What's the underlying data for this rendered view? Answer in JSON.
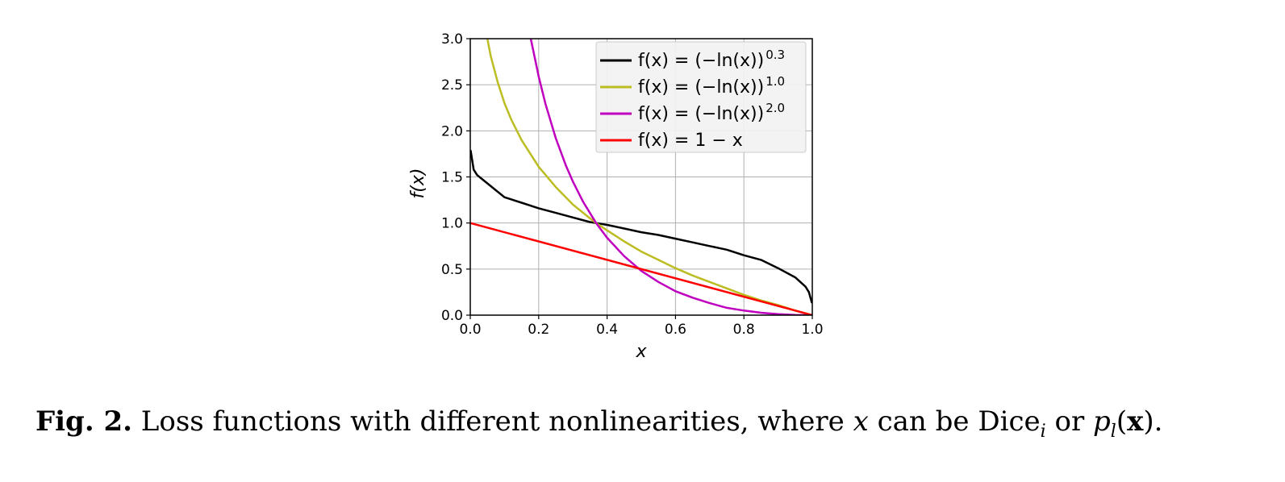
{
  "chart_data": {
    "type": "line",
    "xlabel": "x",
    "ylabel": "f(x)",
    "xlim": [
      0.0,
      1.0
    ],
    "ylim": [
      0.0,
      3.0
    ],
    "xticks": [
      "0.0",
      "0.2",
      "0.4",
      "0.6",
      "0.8",
      "1.0"
    ],
    "yticks": [
      "0.0",
      "0.5",
      "1.0",
      "1.5",
      "2.0",
      "2.5",
      "3.0"
    ],
    "grid": true,
    "legend_position": "top-right",
    "series": [
      {
        "name": "f(x) = (−ln(x))^0.3",
        "legend": {
          "prefix": "f(x) = (−ln(x))",
          "sup": "0.3"
        },
        "color": "#000000",
        "x": [
          0.001,
          0.01,
          0.02,
          0.05,
          0.1,
          0.15,
          0.2,
          0.25,
          0.3,
          0.35,
          0.3679,
          0.4,
          0.45,
          0.5,
          0.55,
          0.6,
          0.65,
          0.7,
          0.75,
          0.8,
          0.85,
          0.9,
          0.95,
          0.98,
          0.99,
          0.999
        ],
        "y": [
          1.79,
          1.58,
          1.52,
          1.43,
          1.28,
          1.22,
          1.16,
          1.11,
          1.06,
          1.01,
          1.0,
          0.98,
          0.94,
          0.9,
          0.87,
          0.83,
          0.79,
          0.75,
          0.71,
          0.65,
          0.6,
          0.51,
          0.41,
          0.31,
          0.25,
          0.13
        ]
      },
      {
        "name": "f(x) = (−ln(x))^1.0",
        "legend": {
          "prefix": "f(x) = (−ln(x))",
          "sup": "1.0"
        },
        "color": "#bcbd22",
        "x": [
          0.05,
          0.06,
          0.08,
          0.1,
          0.12,
          0.15,
          0.2,
          0.25,
          0.3,
          0.35,
          0.3679,
          0.4,
          0.45,
          0.5,
          0.55,
          0.6,
          0.65,
          0.7,
          0.75,
          0.8,
          0.85,
          0.9,
          0.95,
          1.0
        ],
        "y": [
          3.0,
          2.81,
          2.53,
          2.3,
          2.12,
          1.9,
          1.61,
          1.39,
          1.2,
          1.05,
          1.0,
          0.92,
          0.8,
          0.69,
          0.6,
          0.51,
          0.43,
          0.36,
          0.29,
          0.22,
          0.16,
          0.11,
          0.05,
          0.0
        ]
      },
      {
        "name": "f(x) = (−ln(x))^2.0",
        "legend": {
          "prefix": "f(x) = (−ln(x))",
          "sup": "2.0"
        },
        "color": "#bf00bf",
        "x": [
          0.177,
          0.2,
          0.22,
          0.25,
          0.28,
          0.3,
          0.33,
          0.3679,
          0.4,
          0.45,
          0.5,
          0.55,
          0.6,
          0.65,
          0.7,
          0.75,
          0.8,
          0.85,
          0.9,
          0.95,
          1.0
        ],
        "y": [
          3.0,
          2.59,
          2.29,
          1.92,
          1.62,
          1.45,
          1.23,
          1.0,
          0.84,
          0.64,
          0.48,
          0.36,
          0.26,
          0.19,
          0.13,
          0.08,
          0.05,
          0.026,
          0.011,
          0.003,
          0.0
        ]
      },
      {
        "name": "f(x) = 1 − x",
        "legend": {
          "prefix": "f(x) = 1 − x",
          "sup": ""
        },
        "color": "#ff0000",
        "x": [
          0.0,
          1.0
        ],
        "y": [
          1.0,
          0.0
        ]
      }
    ]
  },
  "caption": {
    "figure_label": "Fig. 2.",
    "text_before_x": " Loss functions with different nonlinearities, where ",
    "var_x": "x",
    "text_middle": " can be Dice",
    "sub_i": "i",
    "text_or": " or ",
    "var_p": "p",
    "sub_l": "l",
    "paren_open": "(",
    "bold_x": "x",
    "paren_close": ")."
  }
}
